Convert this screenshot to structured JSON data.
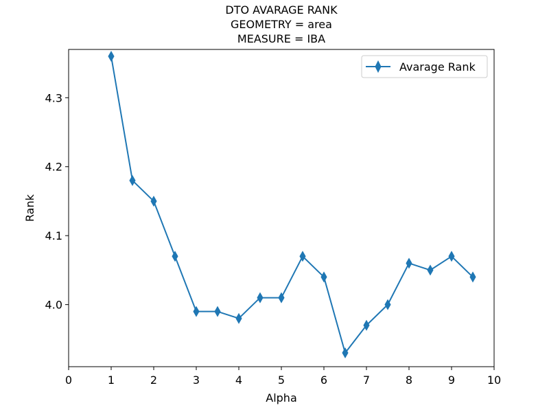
{
  "chart_data": {
    "type": "line",
    "title_lines": [
      "DTO AVARAGE RANK",
      "GEOMETRY = area",
      "MEASURE = IBA"
    ],
    "xlabel": "Alpha",
    "ylabel": "Rank",
    "xlim": [
      0,
      10
    ],
    "ylim": [
      3.91,
      4.37
    ],
    "x_ticks": [
      0,
      1,
      2,
      3,
      4,
      5,
      6,
      7,
      8,
      9,
      10
    ],
    "x_tick_labels": [
      "0",
      "1",
      "2",
      "3",
      "4",
      "5",
      "6",
      "7",
      "8",
      "9",
      "10"
    ],
    "y_ticks": [
      4.0,
      4.1,
      4.2,
      4.3
    ],
    "y_tick_labels": [
      "4.0",
      "4.1",
      "4.2",
      "4.3"
    ],
    "grid": false,
    "legend_position": "top-right",
    "series": [
      {
        "name": "Avarage Rank",
        "color": "#1f77b4",
        "marker": "thin-diamond",
        "x": [
          1,
          1.5,
          2,
          2.5,
          3,
          3.5,
          4,
          4.5,
          5,
          5.5,
          6,
          6.5,
          7,
          7.5,
          8,
          8.5,
          9,
          9.5
        ],
        "y": [
          4.36,
          4.18,
          4.15,
          4.07,
          3.99,
          3.99,
          3.98,
          4.01,
          4.01,
          4.07,
          4.04,
          3.93,
          3.97,
          4.0,
          4.06,
          4.05,
          4.07,
          4.04
        ]
      }
    ]
  }
}
